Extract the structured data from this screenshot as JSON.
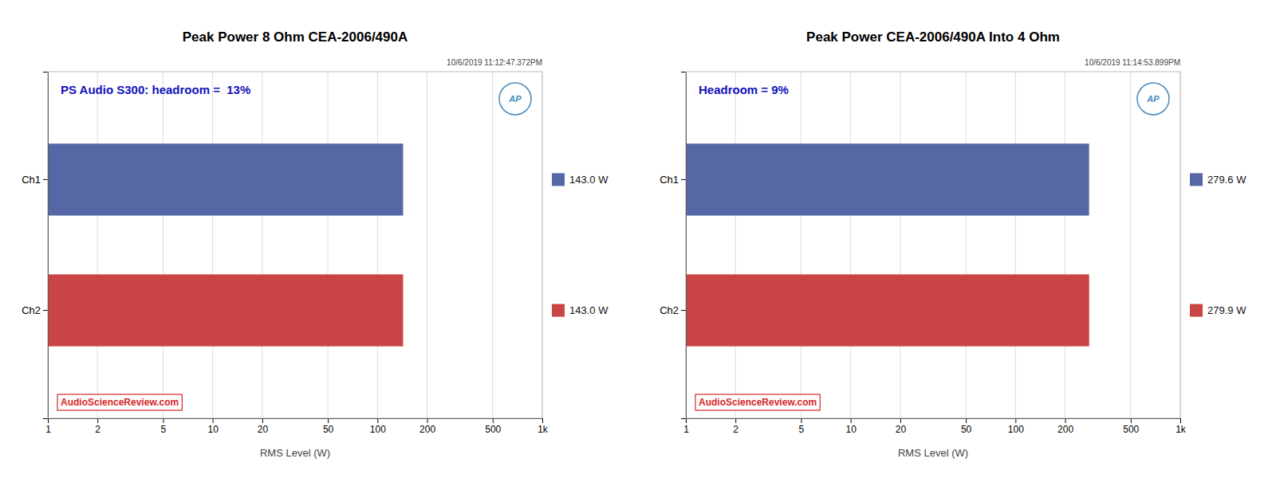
{
  "chart_data": [
    {
      "type": "bar",
      "orientation": "horizontal",
      "title": "Peak Power 8 Ohm CEA-2006/490A",
      "xlabel": "RMS Level (W)",
      "annotations": [
        "10/6/2019 11:12:47.372PM",
        "PS Audio S300: headroom =  13%",
        "AP",
        "AudioScienceReview.com"
      ],
      "categories": [
        "Ch2",
        "Ch1"
      ],
      "values": [
        143.0,
        143.0
      ],
      "value_labels": [
        "143.0 W",
        "143.0 W"
      ],
      "data_labels": true,
      "colors": [
        "#C94444",
        "#5567A4"
      ],
      "log": "x",
      "xlim": [
        1,
        1000
      ],
      "xticks": [
        1,
        2,
        5,
        10,
        20,
        50,
        100,
        200,
        500,
        {
          "value": 1000,
          "label": "1k"
        }
      ],
      "grid": true
    },
    {
      "type": "bar",
      "orientation": "horizontal",
      "title": "Peak Power CEA-2006/490A Into 4 Ohm",
      "xlabel": "RMS Level (W)",
      "annotations": [
        "10/6/2019 11:14:53.899PM",
        "Headroom = 9%",
        "AP",
        "AudioScienceReview.com"
      ],
      "categories": [
        "Ch2",
        "Ch1"
      ],
      "values": [
        279.9,
        279.6
      ],
      "value_labels": [
        "279.9 W",
        "279.6 W"
      ],
      "data_labels": true,
      "colors": [
        "#C94444",
        "#5567A4"
      ],
      "log": "x",
      "xlim": [
        1,
        1000
      ],
      "xticks": [
        1,
        2,
        5,
        10,
        20,
        50,
        100,
        200,
        500,
        {
          "value": 1000,
          "label": "1k"
        }
      ],
      "grid": true
    }
  ]
}
